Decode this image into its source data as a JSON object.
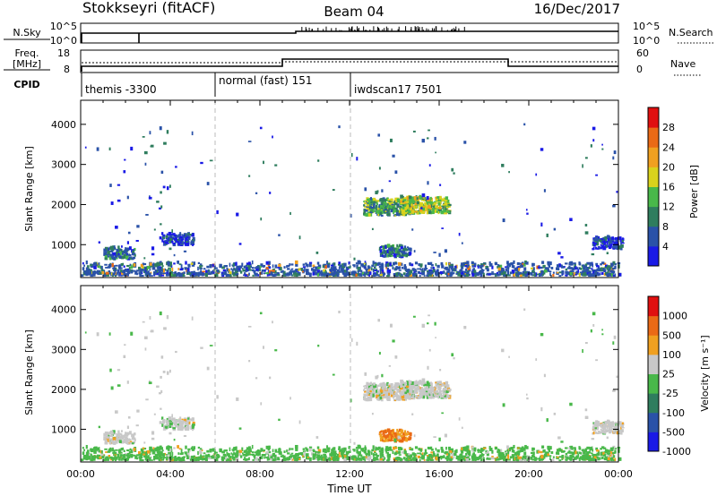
{
  "header": {
    "station": "Stokkseyri (fitACF)",
    "beam": "Beam 04",
    "date": "16/Dec/2017"
  },
  "status_panels": {
    "nsky": {
      "label": "N.Sky",
      "top_tick": "10^5",
      "bottom_tick": "10^0"
    },
    "nsearch": {
      "label": "N.Search",
      "top_tick": "10^5",
      "bottom_tick": "10^0"
    },
    "freq": {
      "label_line1": "Freq.",
      "label_line2": "[MHz]",
      "top_tick": "18",
      "bottom_tick": "8"
    },
    "nave": {
      "label": "Nave",
      "top_tick": "60",
      "bottom_tick": "0"
    },
    "cpid": {
      "label": "CPID",
      "modes": [
        {
          "name": "themis -3300",
          "start_hour": 0.2
        },
        {
          "name": "normal (fast) 151",
          "start_hour": 6.0
        },
        {
          "name": "iwdscan17 7501",
          "start_hour": 12.0
        }
      ]
    }
  },
  "chart_data": [
    {
      "type": "heatmap",
      "name": "power",
      "ylabel": "Slant Range [km]",
      "ylim": [
        180,
        4600
      ],
      "yticks": [
        "1000",
        "2000",
        "3000",
        "4000"
      ],
      "xlim": [
        0,
        24
      ],
      "colorbar": {
        "label": "Power [dB]",
        "ticks": [
          "4",
          "8",
          "12",
          "16",
          "20",
          "24",
          "28"
        ],
        "colors": [
          "#1a1ae6",
          "#2a52a8",
          "#2f7d5e",
          "#49b84a",
          "#d9d21c",
          "#f0a020",
          "#ea6a16",
          "#e01010"
        ]
      },
      "cluster_hint": [
        {
          "hour": 1.7,
          "range_km": 750,
          "level": 3
        },
        {
          "hour": 4.3,
          "range_km": 1100,
          "level": 2
        },
        {
          "hour": 13.7,
          "range_km": 1900,
          "level": 4
        },
        {
          "hour": 15.3,
          "range_km": 1950,
          "level": 5
        },
        {
          "hour": 14.0,
          "range_km": 800,
          "level": 3
        },
        {
          "hour": 23.5,
          "range_km": 1000,
          "level": 2
        }
      ]
    },
    {
      "type": "heatmap",
      "name": "velocity",
      "ylabel": "Slant Range [km]",
      "ylim": [
        180,
        4600
      ],
      "yticks": [
        "1000",
        "2000",
        "3000",
        "4000"
      ],
      "xlabel": "Time UT",
      "xlim": [
        0,
        24
      ],
      "xticks": [
        "00:00",
        "04:00",
        "08:00",
        "12:00",
        "16:00",
        "20:00",
        "00:00"
      ],
      "colorbar": {
        "label": "Velocity [m s⁻¹]",
        "ticks": [
          "1000",
          "500",
          "100",
          "25",
          "-25",
          "-100",
          "-500",
          "-1000"
        ],
        "colors": [
          "#1a1ae6",
          "#2a52a8",
          "#2f7d5e",
          "#49b84a",
          "#c8c8c8",
          "#f0a020",
          "#ea6a16",
          "#e01010"
        ]
      }
    }
  ]
}
